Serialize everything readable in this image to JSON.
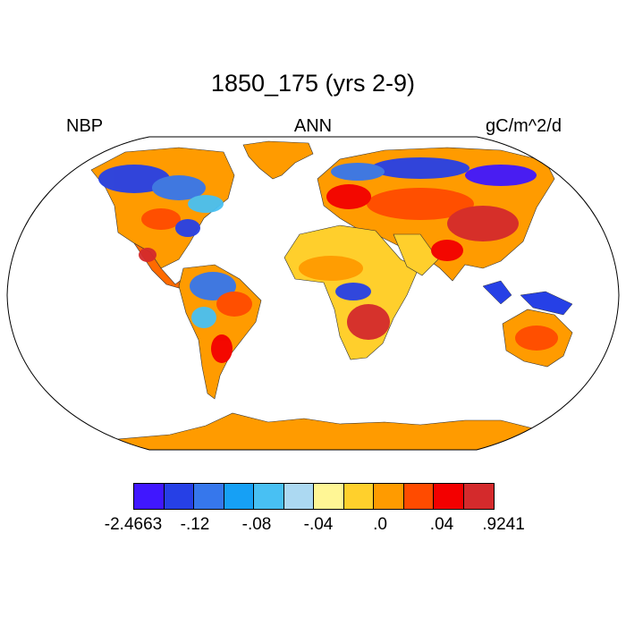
{
  "title": "1850_175 (yrs 2-9)",
  "left_label": "NBP",
  "center_label": "ANN",
  "right_label": "gC/m^2/d",
  "colorbar": {
    "colors": [
      "#4017ff",
      "#2640e6",
      "#3677ec",
      "#16a0f5",
      "#48c0f3",
      "#acd9f2",
      "#fff695",
      "#ffd02c",
      "#ff9b00",
      "#ff4b00",
      "#f30000",
      "#d42a2c"
    ],
    "tick_labels": [
      "-2.4663",
      "-.12",
      "-.08",
      "-.04",
      ".0",
      ".04",
      ".9241"
    ]
  },
  "map": {
    "projection": "Robinson",
    "variable": "NBP",
    "fill_land_default": "#ff9b00"
  }
}
